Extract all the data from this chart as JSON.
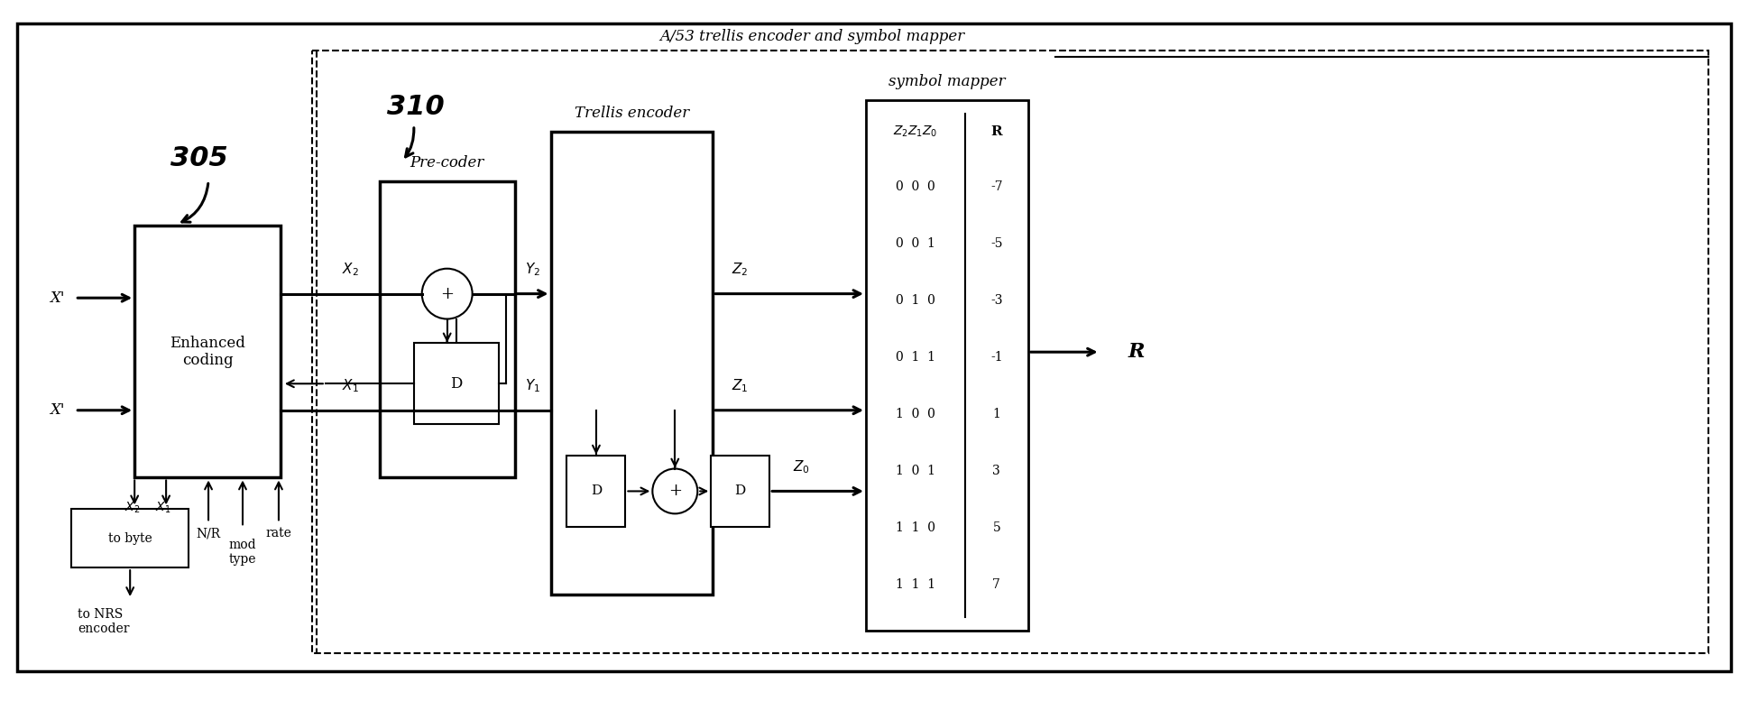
{
  "fig_width": 19.39,
  "fig_height": 7.77,
  "bg_color": "#ffffff",
  "title_main": "A/53 trellis encoder and symbol mapper",
  "label_305": "305",
  "label_310": "310",
  "label_precoder": "Pre-coder",
  "label_trellis": "Trellis encoder",
  "label_symbol": "symbol mapper",
  "label_enhanced": "Enhanced\ncoding",
  "label_tobyte": "to byte",
  "label_nrs": "to NRS\nencoder",
  "label_R_out": "R",
  "rows": [
    [
      "0  0  0",
      "-7"
    ],
    [
      "0  0  1",
      "-5"
    ],
    [
      "0  1  0",
      "-3"
    ],
    [
      "0  1  1",
      "-1"
    ],
    [
      "1  0  0",
      "1"
    ],
    [
      "1  0  1",
      "3"
    ],
    [
      "1  1  0",
      "5"
    ],
    [
      "1  1  1",
      "7"
    ]
  ]
}
